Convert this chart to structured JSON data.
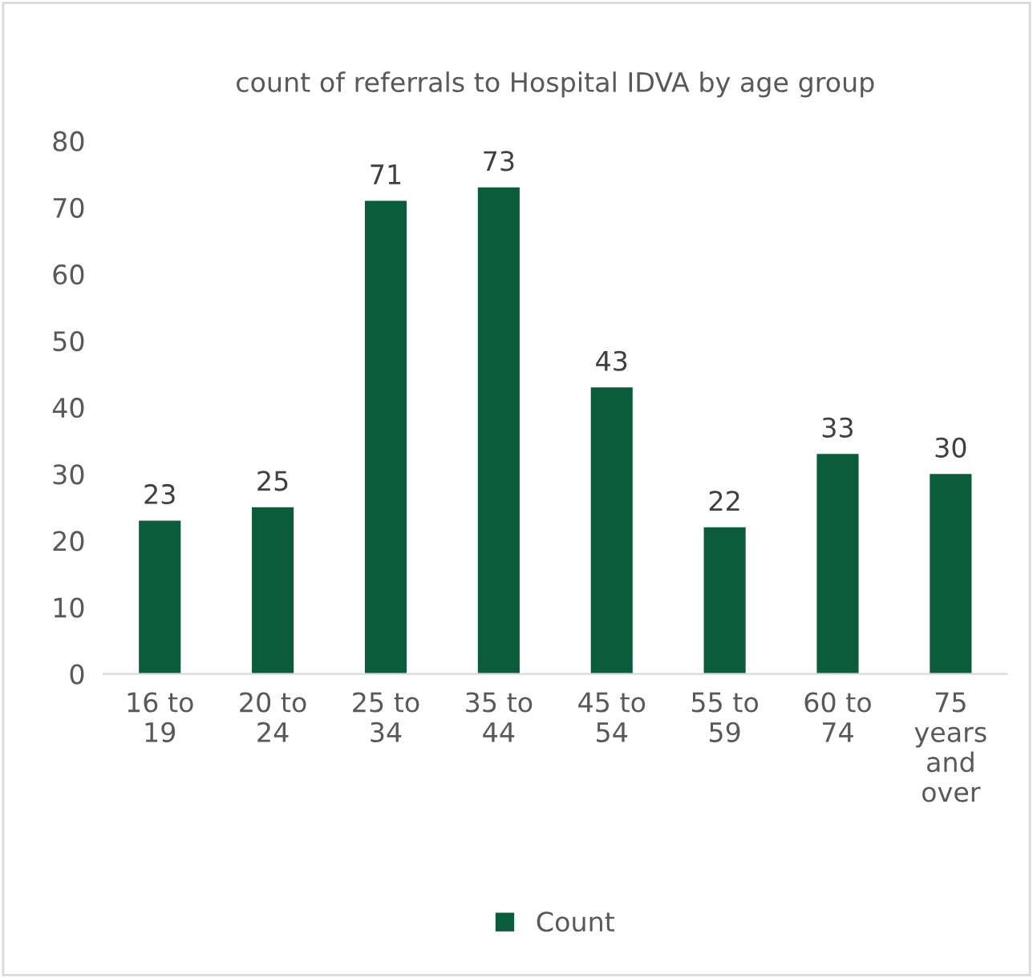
{
  "chart_data": {
    "type": "bar",
    "title": "count of referrals to Hospital IDVA by age group",
    "categories": [
      "16 to\n19",
      "20 to\n24",
      "25 to\n34",
      "35 to\n44",
      "45 to\n54",
      "55 to\n59",
      "60 to\n74",
      "75\nyears\nand\nover"
    ],
    "series": [
      {
        "name": "Count",
        "color": "#0b5c3a",
        "values": [
          23,
          25,
          71,
          73,
          43,
          22,
          33,
          30
        ]
      }
    ],
    "ylim": [
      0,
      80
    ],
    "yticks": [
      0,
      10,
      20,
      30,
      40,
      50,
      60,
      70,
      80
    ],
    "grid": false,
    "legend": "bottom",
    "data_labels": true
  }
}
